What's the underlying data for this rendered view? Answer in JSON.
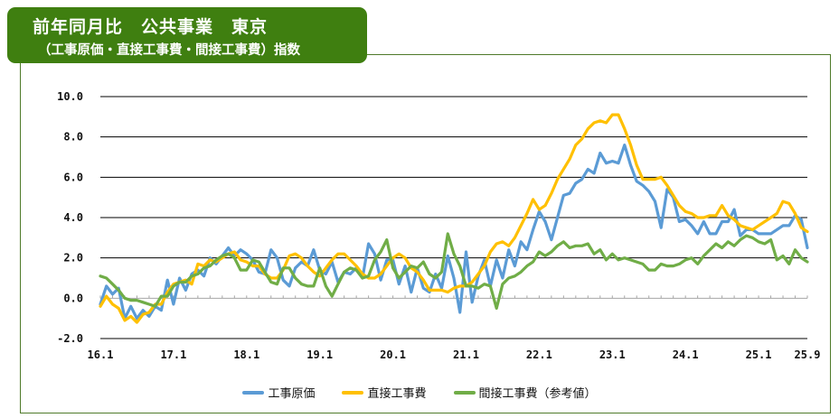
{
  "title": {
    "main": "前年同月比　公共事業　東京",
    "sub": "（工事原価・直接工事費・間接工事費）指数"
  },
  "legend": [
    {
      "label": "工事原価",
      "color": "#5b9bd5"
    },
    {
      "label": "直接工事費",
      "color": "#ffc000"
    },
    {
      "label": "間接工事費（参考値）",
      "color": "#70ad47"
    }
  ],
  "chart_data": {
    "type": "line",
    "title": "前年同月比　公共事業　東京（工事原価・直接工事費・間接工事費）指数",
    "xlabel": "",
    "ylabel": "",
    "ylim": [
      -2.0,
      10.0
    ],
    "yticks": [
      "10.0",
      "8.0",
      "6.0",
      "4.0",
      "2.0",
      "0.0",
      "-2.0"
    ],
    "ytick_values": [
      10,
      8,
      6,
      4,
      2,
      0,
      -2
    ],
    "negative_tick_color": "#c00000",
    "grid": true,
    "xtick_labels": [
      "16.1",
      "17.1",
      "18.1",
      "19.1",
      "20.1",
      "21.1",
      "22.1",
      "23.1",
      "24.1",
      "25.1",
      "25.9"
    ],
    "xtick_indices": [
      0,
      12,
      24,
      36,
      48,
      60,
      72,
      84,
      96,
      108,
      116
    ],
    "x_start": "2016-01",
    "x_end": "2025-09",
    "legend_position": "bottom",
    "series": [
      {
        "name": "工事原価",
        "color": "#5b9bd5",
        "values": [
          -0.3,
          0.6,
          0.2,
          0.5,
          -1.0,
          -0.4,
          -1.0,
          -0.6,
          -0.9,
          -0.4,
          -0.6,
          0.9,
          -0.3,
          1.0,
          0.4,
          1.2,
          1.4,
          1.1,
          2.0,
          1.7,
          2.1,
          2.5,
          2.1,
          2.4,
          2.2,
          1.9,
          1.3,
          1.2,
          2.4,
          2.0,
          0.9,
          0.6,
          1.5,
          1.8,
          1.6,
          2.4,
          1.4,
          1.2,
          1.8,
          0.8,
          1.3,
          1.2,
          1.5,
          1.0,
          2.7,
          2.2,
          0.9,
          1.9,
          1.9,
          0.7,
          1.6,
          0.3,
          1.5,
          0.5,
          0.3,
          1.2,
          0.5,
          2.1,
          1.0,
          -0.7,
          2.3,
          -0.2,
          1.1,
          1.9,
          0.6,
          1.9,
          1.0,
          2.4,
          1.6,
          2.8,
          2.4,
          3.4,
          4.3,
          3.8,
          2.9,
          4.0,
          5.1,
          5.2,
          5.7,
          5.9,
          6.4,
          6.2,
          7.2,
          6.7,
          6.8,
          6.7,
          7.6,
          6.6,
          5.8,
          5.6,
          5.3,
          4.8,
          3.5,
          5.4,
          5.0,
          3.8,
          3.9,
          3.6,
          3.2,
          3.8,
          3.2,
          3.2,
          3.8,
          3.8,
          4.4,
          3.1,
          3.4,
          3.4,
          3.2,
          3.2,
          3.2,
          3.4,
          3.6,
          3.6,
          4.1,
          3.9,
          2.5
        ]
      },
      {
        "name": "直接工事費",
        "color": "#ffc000",
        "values": [
          -0.4,
          0.1,
          -0.3,
          -0.5,
          -1.1,
          -0.9,
          -1.2,
          -0.8,
          -0.7,
          -0.3,
          -0.3,
          0.3,
          0.7,
          0.8,
          0.9,
          0.7,
          1.7,
          1.6,
          1.9,
          1.8,
          2.0,
          2.2,
          2.3,
          1.9,
          1.8,
          1.6,
          1.6,
          1.2,
          1.0,
          1.0,
          1.4,
          2.1,
          2.2,
          2.0,
          1.6,
          1.3,
          1.1,
          1.5,
          1.9,
          2.2,
          2.2,
          1.9,
          1.6,
          1.2,
          1.0,
          1.0,
          1.2,
          1.6,
          2.0,
          2.2,
          2.0,
          1.5,
          1.3,
          0.9,
          0.4,
          0.4,
          0.4,
          0.3,
          0.5,
          0.6,
          0.6,
          0.8,
          1.2,
          1.6,
          2.3,
          2.7,
          2.8,
          2.6,
          3.0,
          3.6,
          4.2,
          4.9,
          4.4,
          4.6,
          5.2,
          5.9,
          6.4,
          6.9,
          7.6,
          7.9,
          8.4,
          8.7,
          8.8,
          8.7,
          9.1,
          9.1,
          8.4,
          7.6,
          6.6,
          5.9,
          5.9,
          5.9,
          6.0,
          5.6,
          5.1,
          4.6,
          4.3,
          4.2,
          4.0,
          4.0,
          4.1,
          4.1,
          4.6,
          4.1,
          3.9,
          3.6,
          3.5,
          3.4,
          3.6,
          3.8,
          4.0,
          4.2,
          4.8,
          4.7,
          4.2,
          3.5,
          3.3
        ]
      },
      {
        "name": "間接工事費（参考値）",
        "color": "#70ad47",
        "values": [
          1.1,
          1.0,
          0.7,
          0.4,
          0.0,
          -0.1,
          -0.1,
          -0.2,
          -0.3,
          -0.4,
          0.1,
          0.1,
          0.6,
          0.8,
          0.8,
          1.1,
          1.2,
          1.5,
          1.6,
          1.9,
          2.1,
          2.2,
          2.0,
          1.4,
          1.4,
          1.9,
          1.8,
          1.3,
          0.8,
          0.7,
          1.5,
          1.5,
          1.0,
          0.7,
          0.6,
          0.6,
          1.5,
          0.6,
          0.1,
          0.7,
          1.3,
          1.5,
          1.4,
          1.0,
          1.1,
          1.9,
          2.3,
          2.9,
          1.5,
          1.0,
          1.3,
          1.6,
          1.5,
          1.8,
          1.2,
          1.0,
          1.3,
          3.2,
          2.2,
          1.6,
          0.6,
          0.6,
          0.5,
          0.7,
          0.6,
          -0.5,
          0.7,
          1.0,
          1.1,
          1.3,
          1.6,
          1.8,
          2.3,
          2.1,
          2.3,
          2.6,
          2.8,
          2.5,
          2.6,
          2.6,
          2.7,
          2.2,
          2.4,
          1.9,
          2.2,
          1.9,
          2.0,
          1.9,
          1.8,
          1.7,
          1.4,
          1.4,
          1.7,
          1.6,
          1.6,
          1.7,
          1.9,
          2.0,
          1.7,
          2.1,
          2.4,
          2.7,
          2.5,
          2.8,
          2.6,
          2.9,
          3.1,
          3.0,
          2.8,
          2.7,
          2.9,
          1.9,
          2.1,
          1.7,
          2.4,
          2.0,
          1.8
        ]
      }
    ]
  }
}
